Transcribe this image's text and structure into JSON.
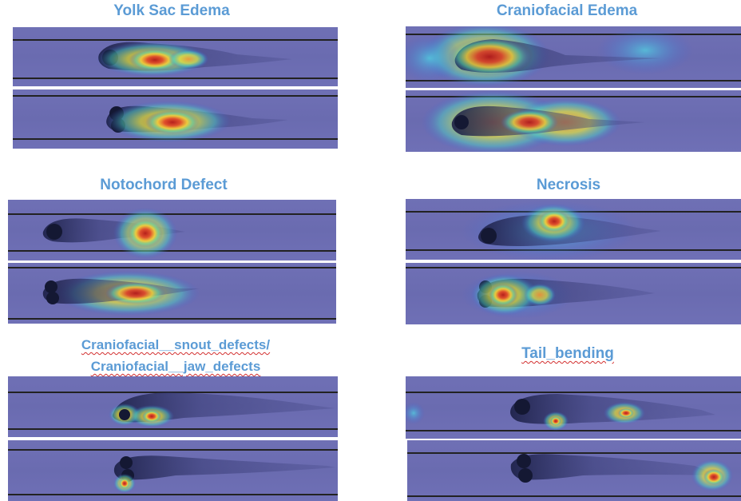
{
  "panels": [
    {
      "title": "Yolk Sac Edema"
    },
    {
      "title": "Craniofacial Edema"
    },
    {
      "title": "Notochord Defect"
    },
    {
      "title": "Necrosis"
    },
    {
      "title_line1": "Craniofacial__snout_defects/",
      "title_line2": "Craniofacial__jaw_defects"
    },
    {
      "title": "Tail_bending"
    }
  ],
  "image_description_names": [
    "zebrafish-heatmap-image"
  ]
}
